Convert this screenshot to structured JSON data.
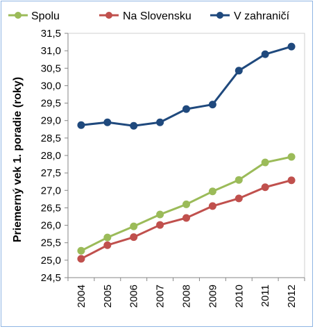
{
  "chart_data": {
    "type": "line",
    "title": "",
    "xlabel": "",
    "ylabel": "Priemerný vek 1. poradie (roky)",
    "categories": [
      "2004",
      "2005",
      "2006",
      "2007",
      "2008",
      "2009",
      "2010",
      "2011",
      "2012"
    ],
    "y_ticks": [
      "24,5",
      "25,0",
      "25,5",
      "26,0",
      "26,5",
      "27,0",
      "27,5",
      "28,0",
      "28,5",
      "29,0",
      "29,5",
      "30,0",
      "30,5",
      "31,0",
      "31,5"
    ],
    "ylim": [
      24.5,
      31.5
    ],
    "grid": false,
    "legend_position": "top",
    "series": [
      {
        "name": "Spolu",
        "color": "#9bbb59",
        "values": [
          25.27,
          25.65,
          25.97,
          26.31,
          26.6,
          26.97,
          27.3,
          27.8,
          27.96
        ]
      },
      {
        "name": "Na Slovensku",
        "color": "#c0504d",
        "values": [
          25.04,
          25.43,
          25.66,
          26.01,
          26.21,
          26.55,
          26.77,
          27.09,
          27.29
        ]
      },
      {
        "name": "V zahraničí",
        "color": "#1f497d",
        "values": [
          28.87,
          28.95,
          28.85,
          28.95,
          29.33,
          29.46,
          30.43,
          30.9,
          31.12
        ]
      }
    ]
  }
}
